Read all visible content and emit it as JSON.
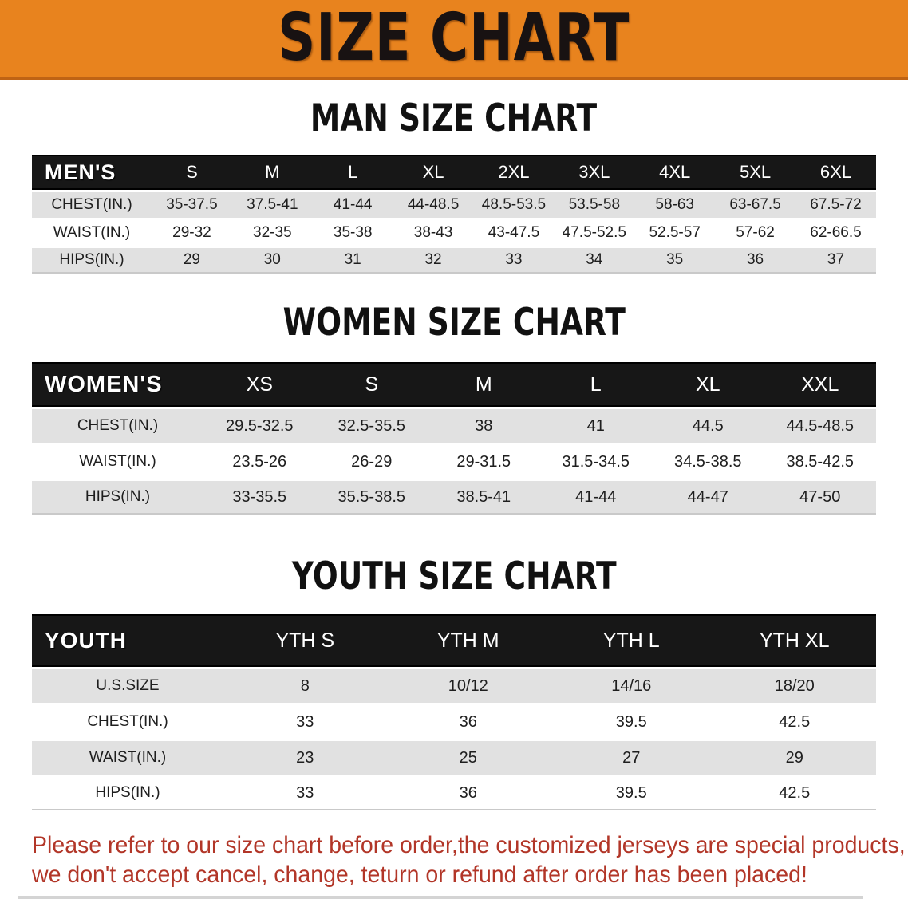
{
  "banner": {
    "title": "SIZE CHART"
  },
  "sections": [
    {
      "heading": "MAN SIZE CHART",
      "table": {
        "header_label": "MEN'S",
        "columns": [
          "S",
          "M",
          "L",
          "XL",
          "2XL",
          "3XL",
          "4XL",
          "5XL",
          "6XL"
        ],
        "rows": [
          {
            "label": "CHEST(IN.)",
            "values": [
              "35-37.5",
              "37.5-41",
              "41-44",
              "44-48.5",
              "48.5-53.5",
              "53.5-58",
              "58-63",
              "63-67.5",
              "67.5-72"
            ]
          },
          {
            "label": "WAIST(IN.)",
            "values": [
              "29-32",
              "32-35",
              "35-38",
              "38-43",
              "43-47.5",
              "47.5-52.5",
              "52.5-57",
              "57-62",
              "62-66.5"
            ]
          },
          {
            "label": "HIPS(IN.)",
            "values": [
              "29",
              "30",
              "31",
              "32",
              "33",
              "34",
              "35",
              "36",
              "37"
            ]
          }
        ]
      }
    },
    {
      "heading": "WOMEN SIZE CHART",
      "table": {
        "header_label": "WOMEN'S",
        "columns": [
          "XS",
          "S",
          "M",
          "L",
          "XL",
          "XXL"
        ],
        "rows": [
          {
            "label": "CHEST(IN.)",
            "values": [
              "29.5-32.5",
              "32.5-35.5",
              "38",
              "41",
              "44.5",
              "44.5-48.5"
            ]
          },
          {
            "label": "WAIST(IN.)",
            "values": [
              "23.5-26",
              "26-29",
              "29-31.5",
              "31.5-34.5",
              "34.5-38.5",
              "38.5-42.5"
            ]
          },
          {
            "label": "HIPS(IN.)",
            "values": [
              "33-35.5",
              "35.5-38.5",
              "38.5-41",
              "41-44",
              "44-47",
              "47-50"
            ]
          }
        ]
      }
    },
    {
      "heading": "YOUTH SIZE CHART",
      "table": {
        "header_label": "YOUTH",
        "columns": [
          "YTH S",
          "YTH M",
          "YTH L",
          "YTH XL"
        ],
        "rows": [
          {
            "label": "U.S.SIZE",
            "values": [
              "8",
              "10/12",
              "14/16",
              "18/20"
            ]
          },
          {
            "label": "CHEST(IN.)",
            "values": [
              "33",
              "36",
              "39.5",
              "42.5"
            ]
          },
          {
            "label": "WAIST(IN.)",
            "values": [
              "23",
              "25",
              "27",
              "29"
            ]
          },
          {
            "label": "HIPS(IN.)",
            "values": [
              "33",
              "36",
              "39.5",
              "42.5"
            ]
          }
        ]
      }
    }
  ],
  "disclaimer": {
    "line1": "Please refer to our size chart before order,the customized jerseys are special products,",
    "line2": "we don't accept cancel, change, teturn or refund after order has been placed!"
  },
  "colors": {
    "banner_bg": "#E8831E",
    "banner_border": "#BF6314",
    "table_header_bg": "#171717",
    "table_header_text": "#FFFFFF",
    "row_stripe_bg": "#E1E1E1",
    "row_text": "#1E1E1E",
    "heading_text": "#111111",
    "disclaimer_text": "#B23628"
  }
}
